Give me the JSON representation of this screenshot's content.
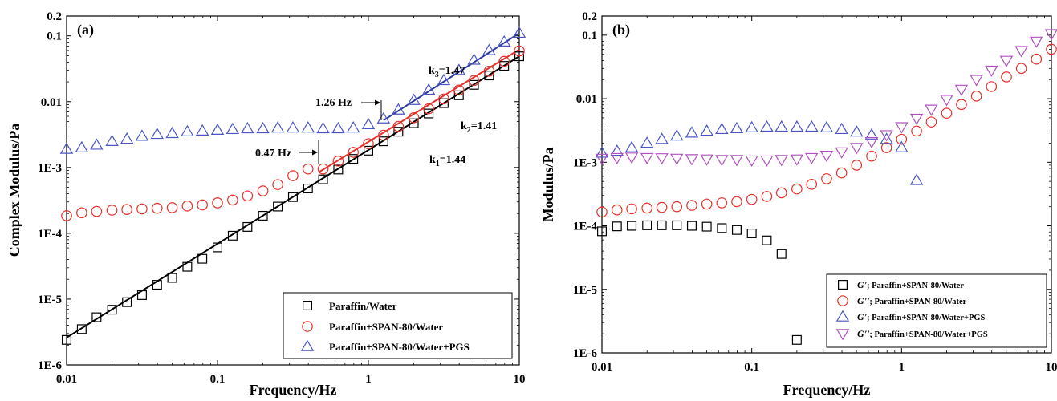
{
  "chart_data": [
    {
      "type": "scatter",
      "panel_label": "(a)",
      "xlabel": "Frequency/Hz",
      "ylabel": "Complex Modulus/Pa",
      "x_scale": "log",
      "y_scale": "log",
      "xlim": [
        0.01,
        10
      ],
      "ylim": [
        1e-06,
        0.2
      ],
      "x_tick_labels": [
        "0.01",
        "0.1",
        "1",
        "10"
      ],
      "y_tick_labels": [
        "1E-6",
        "1E-5",
        "1E-4",
        "1E-3",
        "0.01",
        "0.1",
        "0.2"
      ],
      "grid": false,
      "legend_position": "bottom-right",
      "series": [
        {
          "name": "Paraffin/Water",
          "marker": "square",
          "color": "#000000",
          "x": [
            0.01,
            0.0126,
            0.0158,
            0.02,
            0.0251,
            0.0316,
            0.0398,
            0.0501,
            0.0631,
            0.0794,
            0.1,
            0.126,
            0.158,
            0.2,
            0.251,
            0.316,
            0.398,
            0.501,
            0.631,
            0.794,
            1.0,
            1.26,
            1.58,
            2.0,
            2.51,
            3.16,
            3.98,
            5.01,
            6.31,
            7.94,
            10.0
          ],
          "y": [
            2.4e-06,
            3.5e-06,
            5.3e-06,
            6.9e-06,
            9e-06,
            1.15e-05,
            1.65e-05,
            2.1e-05,
            3.1e-05,
            4.1e-05,
            6.1e-05,
            9.2e-05,
            0.000125,
            0.000185,
            0.000255,
            0.000355,
            0.00048,
            0.00066,
            0.00093,
            0.00135,
            0.0018,
            0.0025,
            0.0035,
            0.0047,
            0.0066,
            0.0095,
            0.0125,
            0.018,
            0.025,
            0.035,
            0.049
          ]
        },
        {
          "name": "Paraffin+SPAN-80/Water",
          "marker": "circle",
          "color": "#e8302a",
          "x": [
            0.01,
            0.0126,
            0.0158,
            0.02,
            0.0251,
            0.0316,
            0.0398,
            0.0501,
            0.0631,
            0.0794,
            0.1,
            0.126,
            0.158,
            0.2,
            0.251,
            0.316,
            0.398,
            0.501,
            0.631,
            0.794,
            1.0,
            1.26,
            1.58,
            2.0,
            2.51,
            3.16,
            3.98,
            5.01,
            6.31,
            7.94,
            10.0
          ],
          "y": [
            0.000185,
            0.000205,
            0.000215,
            0.000225,
            0.00023,
            0.000235,
            0.00024,
            0.000245,
            0.00026,
            0.00027,
            0.00029,
            0.00032,
            0.00037,
            0.00044,
            0.00055,
            0.00075,
            0.00095,
            0.00095,
            0.00125,
            0.0017,
            0.0023,
            0.0031,
            0.0042,
            0.0057,
            0.0078,
            0.011,
            0.015,
            0.021,
            0.029,
            0.041,
            0.059
          ]
        },
        {
          "name": "Paraffin+SPAN-80/Water+PGS",
          "marker": "triangle-up",
          "color": "#4a55c8",
          "x": [
            0.01,
            0.0126,
            0.0158,
            0.02,
            0.0251,
            0.0316,
            0.0398,
            0.0501,
            0.0631,
            0.0794,
            0.1,
            0.126,
            0.158,
            0.2,
            0.251,
            0.316,
            0.398,
            0.501,
            0.631,
            0.794,
            1.0,
            1.26,
            1.58,
            2.0,
            2.51,
            3.16,
            3.98,
            5.01,
            6.31,
            7.94,
            10.0
          ],
          "y": [
            0.0019,
            0.002,
            0.0022,
            0.0025,
            0.0027,
            0.003,
            0.0032,
            0.0033,
            0.0035,
            0.0036,
            0.0037,
            0.0038,
            0.0039,
            0.0039,
            0.004,
            0.004,
            0.004,
            0.0039,
            0.0039,
            0.004,
            0.0045,
            0.0055,
            0.0075,
            0.0105,
            0.015,
            0.021,
            0.03,
            0.043,
            0.06,
            0.081,
            0.11
          ]
        }
      ],
      "fit_lines": [
        {
          "label": "k1=1.44",
          "color": "#000000",
          "x": [
            0.01,
            10.0
          ],
          "y": [
            2.6e-06,
            0.049
          ]
        },
        {
          "label": "k2=1.41",
          "color": "#e8302a",
          "x": [
            0.47,
            10.0
          ],
          "y": [
            0.00085,
            0.062
          ]
        },
        {
          "label": "k3=1.47",
          "color": "#2b3a9a",
          "x": [
            1.26,
            10.0
          ],
          "y": [
            0.0052,
            0.11
          ]
        }
      ],
      "annotations": [
        {
          "text": "0.47 Hz",
          "arrow": true
        },
        {
          "text": "1.26 Hz",
          "arrow": true
        },
        {
          "text": "k",
          "sub": "1",
          "suffix": "=1.44"
        },
        {
          "text": "k",
          "sub": "2",
          "suffix": "=1.41"
        },
        {
          "text": "k",
          "sub": "3",
          "suffix": "=1.47"
        }
      ]
    },
    {
      "type": "scatter",
      "panel_label": "(b)",
      "xlabel": "Frequency/Hz",
      "ylabel": "Modulus/Pa",
      "x_scale": "log",
      "y_scale": "log",
      "xlim": [
        0.01,
        10
      ],
      "ylim": [
        1e-06,
        0.2
      ],
      "x_tick_labels": [
        "0.01",
        "0.1",
        "1",
        "10"
      ],
      "y_tick_labels": [
        "1E-6",
        "1E-5",
        "1E-4",
        "1E-3",
        "0.01",
        "0.1",
        "0.2"
      ],
      "grid": false,
      "legend_position": "bottom-right",
      "series": [
        {
          "name_italic": "G'",
          "name": "; Paraffin+SPAN-80/Water",
          "marker": "square",
          "color": "#000000",
          "x": [
            0.01,
            0.0126,
            0.0158,
            0.02,
            0.0251,
            0.0316,
            0.0398,
            0.0501,
            0.0631,
            0.0794,
            0.1,
            0.126,
            0.158,
            0.2
          ],
          "y": [
            8.2e-05,
            9.8e-05,
            0.0001,
            0.000102,
            0.000102,
            0.000102,
            0.0001,
            9.7e-05,
            9.2e-05,
            8.6e-05,
            7.6e-05,
            5.9e-05,
            3.6e-05,
            1.6e-06
          ]
        },
        {
          "name_italic": "G''",
          "name": "; Paraffin+SPAN-80/Water",
          "marker": "circle",
          "color": "#e8302a",
          "x": [
            0.01,
            0.0126,
            0.0158,
            0.02,
            0.0251,
            0.0316,
            0.0398,
            0.0501,
            0.0631,
            0.0794,
            0.1,
            0.126,
            0.158,
            0.2,
            0.251,
            0.316,
            0.398,
            0.501,
            0.631,
            0.794,
            1.0,
            1.26,
            1.58,
            2.0,
            2.51,
            3.16,
            3.98,
            5.01,
            6.31,
            7.94,
            10.0
          ],
          "y": [
            0.000165,
            0.000178,
            0.000185,
            0.00019,
            0.000195,
            0.0002,
            0.00021,
            0.00022,
            0.00023,
            0.00024,
            0.00026,
            0.00029,
            0.00033,
            0.00038,
            0.00045,
            0.00055,
            0.00068,
            0.0009,
            0.00125,
            0.0017,
            0.0023,
            0.0031,
            0.0043,
            0.0059,
            0.0081,
            0.011,
            0.0155,
            0.022,
            0.03,
            0.042,
            0.06
          ]
        },
        {
          "name_italic": "G'",
          "name": "; Paraffin+SPAN-80/Water+PGS",
          "marker": "triangle-up",
          "color": "#4a55c8",
          "x": [
            0.01,
            0.0126,
            0.0158,
            0.02,
            0.0251,
            0.0316,
            0.0398,
            0.0501,
            0.0631,
            0.0794,
            0.1,
            0.126,
            0.158,
            0.2,
            0.251,
            0.316,
            0.398,
            0.501,
            0.631,
            0.794,
            1.0,
            1.26
          ],
          "y": [
            0.0014,
            0.0015,
            0.0017,
            0.002,
            0.0023,
            0.0026,
            0.0029,
            0.0031,
            0.0033,
            0.0034,
            0.0035,
            0.0036,
            0.0036,
            0.0036,
            0.0036,
            0.0035,
            0.0033,
            0.003,
            0.0027,
            0.0023,
            0.0017,
            0.00052
          ]
        },
        {
          "name_italic": "G''",
          "name": "; Paraffin+SPAN-80/Water+PGS",
          "marker": "triangle-down",
          "color": "#b050c0",
          "x": [
            0.01,
            0.0126,
            0.0158,
            0.02,
            0.0251,
            0.0316,
            0.0398,
            0.0501,
            0.0631,
            0.0794,
            0.1,
            0.126,
            0.158,
            0.2,
            0.251,
            0.316,
            0.398,
            0.501,
            0.631,
            0.794,
            1.0,
            1.26,
            1.58,
            2.0,
            2.51,
            3.16,
            3.98,
            5.01,
            6.31,
            7.94,
            10.0
          ],
          "y": [
            0.00115,
            0.00118,
            0.0012,
            0.00118,
            0.00117,
            0.00115,
            0.00113,
            0.00112,
            0.0011,
            0.0011,
            0.00108,
            0.00108,
            0.0011,
            0.00112,
            0.00118,
            0.00128,
            0.00145,
            0.0017,
            0.0021,
            0.0027,
            0.0036,
            0.0049,
            0.0068,
            0.0097,
            0.014,
            0.02,
            0.028,
            0.04,
            0.057,
            0.08,
            0.105
          ]
        }
      ]
    }
  ]
}
